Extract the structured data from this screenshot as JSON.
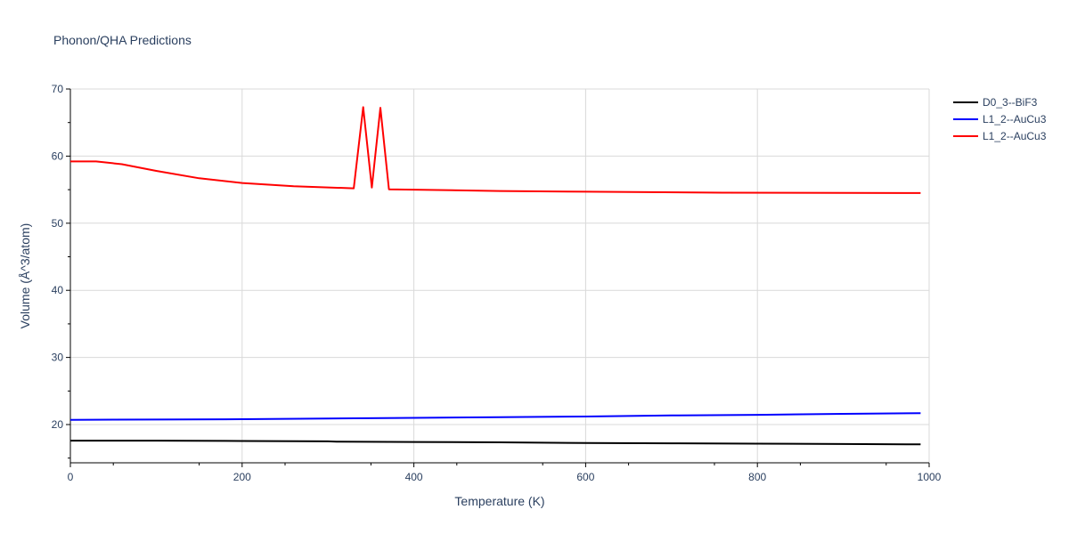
{
  "chart_data": {
    "type": "line",
    "title": "Phonon/QHA Predictions",
    "xlabel": "Temperature (K)",
    "ylabel": "Volume (Å^3/atom)",
    "xlim": [
      0,
      1000
    ],
    "ylim": [
      14.3,
      70
    ],
    "x_ticks": [
      0,
      200,
      400,
      600,
      800,
      1000
    ],
    "y_ticks": [
      20,
      30,
      40,
      50,
      60,
      70
    ],
    "grid": true,
    "legend_position": "top-right",
    "series": [
      {
        "name": "D0_3--BiF3",
        "color": "#000000",
        "x": [
          0,
          100,
          200,
          300,
          310,
          400,
          500,
          600,
          700,
          800,
          900,
          990
        ],
        "y": [
          17.6,
          17.6,
          17.55,
          17.5,
          17.45,
          17.4,
          17.35,
          17.25,
          17.2,
          17.15,
          17.1,
          17.05
        ]
      },
      {
        "name": "L1_2--AuCu3",
        "color": "#0000ff",
        "x": [
          0,
          100,
          200,
          300,
          400,
          500,
          600,
          700,
          800,
          900,
          990
        ],
        "y": [
          20.7,
          20.75,
          20.8,
          20.9,
          21.0,
          21.1,
          21.2,
          21.35,
          21.45,
          21.6,
          21.7
        ]
      },
      {
        "name": "L1_2--AuCu3",
        "color": "#ff0000",
        "x": [
          0,
          30,
          60,
          100,
          150,
          200,
          260,
          330,
          341,
          351,
          361,
          371,
          400,
          500,
          600,
          760,
          990
        ],
        "y": [
          59.2,
          59.2,
          58.8,
          57.8,
          56.7,
          56.0,
          55.5,
          55.2,
          67.3,
          55.3,
          67.2,
          55.05,
          55.0,
          54.8,
          54.7,
          54.55,
          54.5
        ]
      }
    ]
  }
}
